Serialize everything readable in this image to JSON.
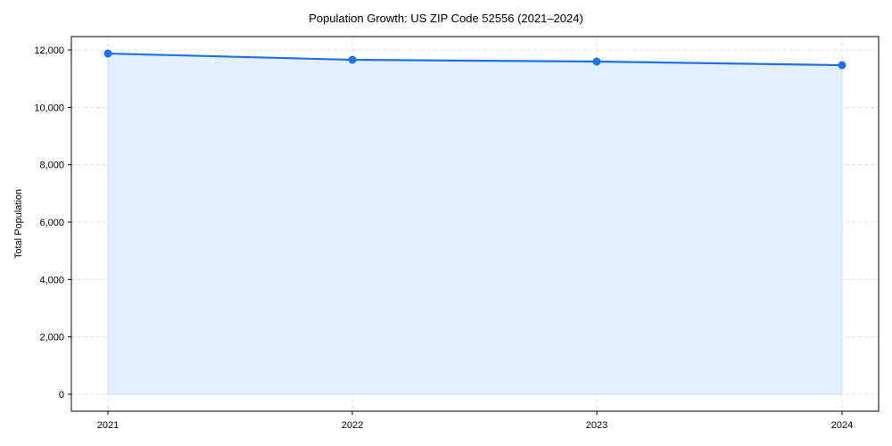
{
  "title": "Population Growth: US ZIP Code 52556 (2021–2024)",
  "colors": {
    "line": "#1a73e8",
    "fill": "#e3eeff",
    "grid": "#dddddd"
  },
  "chart_data": {
    "type": "area",
    "title": "Population Growth: US ZIP Code 52556 (2021–2024)",
    "xlabel": "",
    "ylabel": "Total Population",
    "categories": [
      "2021",
      "2022",
      "2023",
      "2024"
    ],
    "series": [
      {
        "name": "Total Population",
        "values": [
          11875,
          11657,
          11595,
          11470
        ]
      }
    ],
    "ylim": [
      -600,
      12600
    ],
    "yticks": [
      0,
      2000,
      4000,
      6000,
      8000,
      10000,
      12000
    ],
    "ytick_labels": [
      "0",
      "2,000",
      "4,000",
      "6,000",
      "8,000",
      "10,000",
      "12,000"
    ],
    "grid": true,
    "legend": null
  }
}
